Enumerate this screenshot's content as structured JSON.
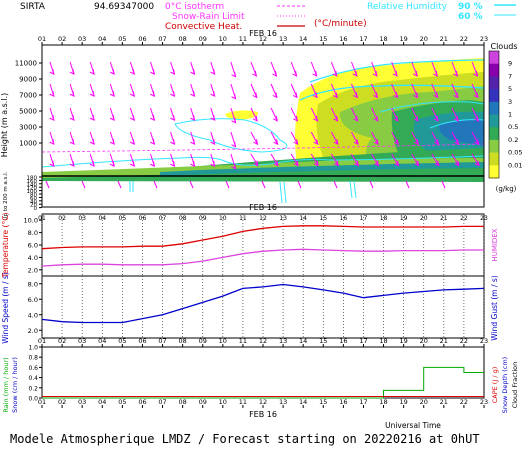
{
  "header": {
    "station": "SIRTA",
    "coords": "94.69347000",
    "legend_isotherm": "0°C isotherm",
    "legend_snow_rain": "Snow-Rain Limit",
    "legend_convective": "Convective Heat.",
    "legend_unit": "(°C/minute)",
    "legend_rh": "Relative Humidity",
    "rh_90": "90 %",
    "rh_60": "60 %"
  },
  "footer_text": "Modele Atmospherique LMDZ / Forecast starting on 20220216 at 0hUT",
  "universal_time": "Universal Time",
  "date_label": "FEB 16",
  "hours": [
    "01",
    "02",
    "03",
    "04",
    "05",
    "06",
    "07",
    "08",
    "09",
    "10",
    "11",
    "12",
    "13",
    "14",
    "15",
    "16",
    "17",
    "18",
    "19",
    "20",
    "21",
    "22",
    "23"
  ],
  "colors": {
    "isotherm": "#ff33ff",
    "convective": "#cc0000",
    "rh": "#33e6ff",
    "wind_arrow": "#ff00ff",
    "temperature": "#dd0000",
    "humidex": "#dd44dd",
    "wind": "#0000cc",
    "rain": "#00aa00",
    "snow_depth": "#0000cc",
    "cape": "#dd0000"
  },
  "chart_data": [
    {
      "type": "heatmap",
      "name": "cloud-fraction",
      "ylabel": "Height (m a.s.l.)",
      "ylabel2": "Up to 200 m a.s.l.",
      "y_ticks": [
        "11000",
        "9000",
        "7000",
        "5000",
        "3000",
        "1000",
        "180",
        "160",
        "140",
        "120",
        "100",
        "80",
        "60",
        "40",
        "20",
        "0"
      ],
      "colorbar_title": "Clouds",
      "colorbar_unit": "(g/kg)",
      "colorbar_labels": [
        "9",
        "7",
        "5",
        "3",
        "1",
        "0.5",
        "0.2",
        "0.05",
        "0.01"
      ],
      "colorbar_colors": [
        "#cc44dd",
        "#8800aa",
        "#5522aa",
        "#3333bb",
        "#2277bb",
        "#229999",
        "#33aa55",
        "#88cc44",
        "#ccdd22",
        "#ffff33"
      ]
    },
    {
      "type": "line",
      "name": "temperature",
      "ylabel": "Temperature (°C)",
      "ylabel_right": "HUMIDEX",
      "y_ticks": [
        "10.0",
        "8.0",
        "6.0",
        "4.0",
        "2.0"
      ],
      "ylim": [
        1.0,
        11.0
      ],
      "x": [
        1,
        2,
        3,
        4,
        5,
        6,
        7,
        8,
        9,
        10,
        11,
        12,
        13,
        14,
        15,
        16,
        17,
        18,
        19,
        20,
        21,
        22,
        23
      ],
      "series": [
        {
          "name": "Temperature",
          "values": [
            5.4,
            5.6,
            5.7,
            5.7,
            5.7,
            5.8,
            5.8,
            6.2,
            6.8,
            7.4,
            8.2,
            8.7,
            9.0,
            9.1,
            9.1,
            9.0,
            8.9,
            8.9,
            8.9,
            8.9,
            8.9,
            9.0,
            9.0
          ]
        },
        {
          "name": "HUMIDEX",
          "values": [
            2.6,
            2.8,
            2.9,
            2.9,
            2.8,
            2.8,
            2.8,
            3.0,
            3.4,
            4.0,
            4.6,
            5.0,
            5.2,
            5.3,
            5.2,
            5.1,
            5.0,
            5.0,
            5.1,
            5.1,
            5.1,
            5.2,
            5.2
          ]
        }
      ]
    },
    {
      "type": "line",
      "name": "wind",
      "ylabel": "Wind Speed (m / s)",
      "ylabel_right": "Wind Gust (m / s)",
      "y_ticks": [
        "8.0",
        "6.0",
        "4.0",
        "2.0"
      ],
      "ylim": [
        1.0,
        9.0
      ],
      "x": [
        1,
        2,
        3,
        4,
        5,
        6,
        7,
        8,
        9,
        10,
        11,
        12,
        13,
        14,
        15,
        16,
        17,
        18,
        19,
        20,
        21,
        22,
        23
      ],
      "series": [
        {
          "name": "Wind Speed",
          "values": [
            3.4,
            3.1,
            3.0,
            3.0,
            3.0,
            3.5,
            4.0,
            4.8,
            5.6,
            6.4,
            7.4,
            7.6,
            7.9,
            7.6,
            7.2,
            6.8,
            6.2,
            6.5,
            6.8,
            7.0,
            7.2,
            7.3,
            7.4
          ]
        }
      ]
    },
    {
      "type": "area",
      "name": "rain",
      "ylabel": "Rain (mm / hour)",
      "ylabel2": "Snow (cm / hour)",
      "ylabel_right": "CAPE (J / g)",
      "ylabel_right2": "Snow Depth (cm)",
      "ylabel_right3": "Cloud Fraction",
      "y_ticks": [
        "1.0",
        "0.8",
        "0.6",
        "0.4",
        "0.2",
        "0.0"
      ],
      "ylim": [
        0.0,
        1.0
      ],
      "x": [
        1,
        2,
        3,
        4,
        5,
        6,
        7,
        8,
        9,
        10,
        11,
        12,
        13,
        14,
        15,
        16,
        17,
        18,
        19,
        20,
        21,
        22,
        23
      ],
      "series": [
        {
          "name": "Rain",
          "values": [
            0,
            0,
            0,
            0,
            0,
            0,
            0,
            0,
            0,
            0,
            0,
            0,
            0,
            0,
            0,
            0,
            0,
            0.15,
            0.15,
            0.6,
            0.6,
            0.5,
            0.5
          ]
        }
      ]
    }
  ]
}
